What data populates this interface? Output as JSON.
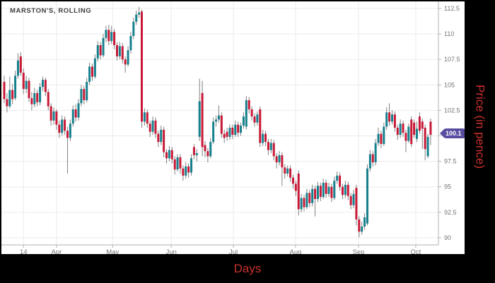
{
  "title": "MARSTON'S, ROLLING",
  "axis_titles": {
    "x": "Days",
    "y": "Price (in pence)"
  },
  "price_badge": {
    "value": "100.1"
  },
  "colors": {
    "up": "#17808d",
    "down": "#c81937",
    "wick": "#808080",
    "grid": "#ebebeb",
    "axis_line": "#b0b0b0",
    "tick_text": "#757575",
    "badge": "#584ca0",
    "axis_title_text": "#c9302c"
  },
  "chart_data": {
    "type": "candlestick",
    "title": "MARSTON'S, ROLLING",
    "xlabel": "Days",
    "ylabel": "Price (in pence)",
    "ylim": [
      88.9,
      113.2
    ],
    "grid": true,
    "y_ticks": [
      112.5,
      110,
      107.5,
      105,
      102.5,
      100,
      97.5,
      95,
      92.5,
      90
    ],
    "y_tick_labels": [
      "112.5",
      "110",
      "107.5",
      "105",
      "102.5",
      "",
      "97.5",
      "95",
      "92.5",
      "90"
    ],
    "x_ticks": [
      {
        "label": "14",
        "i": 7
      },
      {
        "label": "Apr",
        "i": 19
      },
      {
        "label": "May",
        "i": 39.4
      },
      {
        "label": "Jun",
        "i": 60.7
      },
      {
        "label": "Jul",
        "i": 83.3
      },
      {
        "label": "Aug",
        "i": 105.9
      },
      {
        "label": "Sep",
        "i": 128.8
      },
      {
        "label": "Oct",
        "i": 149.6
      }
    ],
    "last_price": 100.1,
    "candles_format": [
      "open",
      "high",
      "low",
      "close"
    ],
    "candles": [
      [
        105.3,
        105.9,
        103.2,
        103.6
      ],
      [
        103.6,
        104.2,
        102.3,
        102.9
      ],
      [
        102.9,
        105.8,
        102.7,
        104.5
      ],
      [
        104.5,
        105.1,
        103.1,
        103.6
      ],
      [
        103.7,
        106.4,
        103.5,
        105.9
      ],
      [
        105.9,
        108.1,
        105.6,
        107.4
      ],
      [
        107.8,
        108.2,
        105.9,
        106.2
      ],
      [
        106.2,
        106.6,
        104.1,
        104.6
      ],
      [
        104.6,
        105.9,
        104.2,
        105.4
      ],
      [
        105.4,
        105.7,
        103.3,
        103.7
      ],
      [
        103.7,
        104.3,
        102.5,
        103.1
      ],
      [
        103.1,
        104.7,
        102.8,
        104.2
      ],
      [
        104.2,
        104.5,
        102.9,
        103.3
      ],
      [
        103.3,
        105.2,
        103.0,
        104.8
      ],
      [
        104.8,
        105.8,
        104.4,
        105.5
      ],
      [
        105.5,
        105.7,
        103.9,
        104.3
      ],
      [
        104.3,
        104.6,
        102.5,
        102.9
      ],
      [
        102.9,
        103.2,
        101.0,
        101.5
      ],
      [
        101.5,
        102.8,
        101.1,
        102.4
      ],
      [
        102.4,
        102.6,
        100.6,
        101.1
      ],
      [
        101.1,
        101.5,
        99.8,
        100.3
      ],
      [
        100.3,
        102.0,
        100.0,
        101.6
      ],
      [
        101.6,
        101.9,
        100.1,
        100.5
      ],
      [
        100.5,
        100.9,
        96.3,
        99.8
      ],
      [
        99.8,
        101.6,
        99.5,
        101.2
      ],
      [
        101.2,
        103.0,
        100.9,
        102.6
      ],
      [
        102.6,
        103.1,
        101.4,
        101.8
      ],
      [
        101.8,
        103.6,
        101.5,
        103.2
      ],
      [
        103.2,
        105.0,
        102.9,
        104.6
      ],
      [
        104.6,
        104.9,
        103.1,
        103.5
      ],
      [
        103.5,
        105.7,
        103.3,
        105.3
      ],
      [
        105.3,
        107.2,
        105.0,
        106.8
      ],
      [
        106.8,
        107.1,
        105.4,
        105.8
      ],
      [
        105.8,
        108.0,
        105.6,
        107.6
      ],
      [
        107.6,
        109.3,
        107.3,
        108.9
      ],
      [
        108.9,
        109.2,
        107.5,
        107.9
      ],
      [
        107.9,
        110.0,
        107.7,
        109.6
      ],
      [
        109.6,
        110.8,
        109.2,
        110.4
      ],
      [
        110.4,
        110.9,
        108.9,
        109.3
      ],
      [
        109.3,
        110.8,
        109.0,
        110.2
      ],
      [
        110.2,
        110.5,
        108.5,
        108.9
      ],
      [
        108.9,
        109.2,
        107.4,
        107.8
      ],
      [
        107.8,
        109.2,
        107.5,
        108.8
      ],
      [
        108.8,
        109.1,
        107.1,
        107.5
      ],
      [
        107.5,
        107.8,
        106.2,
        107.0
      ],
      [
        107.0,
        108.8,
        106.8,
        108.4
      ],
      [
        108.4,
        110.2,
        108.1,
        109.8
      ],
      [
        109.8,
        111.6,
        109.5,
        111.2
      ],
      [
        111.2,
        112.3,
        110.9,
        111.9
      ],
      [
        111.9,
        112.65,
        111.6,
        112.1
      ],
      [
        112.2,
        112.4,
        100.8,
        101.4
      ],
      [
        101.4,
        102.7,
        101.0,
        102.3
      ],
      [
        102.3,
        102.6,
        100.8,
        101.2
      ],
      [
        101.2,
        101.5,
        99.9,
        100.4
      ],
      [
        100.4,
        101.9,
        100.1,
        101.5
      ],
      [
        101.5,
        101.8,
        99.8,
        100.2
      ],
      [
        100.2,
        100.5,
        98.9,
        99.4
      ],
      [
        99.4,
        101.0,
        99.1,
        100.6
      ],
      [
        100.6,
        100.9,
        97.9,
        98.4
      ],
      [
        98.4,
        98.7,
        97.3,
        97.8
      ],
      [
        97.8,
        99.0,
        97.5,
        98.6
      ],
      [
        98.6,
        98.9,
        97.3,
        97.7
      ],
      [
        97.7,
        98.0,
        96.2,
        96.7
      ],
      [
        96.7,
        98.2,
        96.5,
        97.9
      ],
      [
        97.9,
        98.2,
        96.3,
        96.8
      ],
      [
        96.8,
        97.1,
        95.6,
        96.1
      ],
      [
        96.1,
        97.4,
        95.8,
        97.0
      ],
      [
        97.0,
        97.3,
        95.9,
        96.4
      ],
      [
        96.4,
        98.2,
        96.1,
        97.8
      ],
      [
        98.9,
        99.2,
        97.7,
        98.1
      ],
      [
        98.1,
        98.7,
        97.5,
        98.3
      ],
      [
        99.9,
        105.6,
        99.5,
        103.4
      ],
      [
        104.2,
        105.4,
        98.0,
        98.9
      ],
      [
        99.1,
        99.5,
        97.9,
        98.5
      ],
      [
        98.5,
        98.8,
        97.4,
        98.0
      ],
      [
        98.0,
        99.8,
        97.8,
        99.4
      ],
      [
        99.4,
        101.8,
        99.2,
        101.4
      ],
      [
        101.4,
        102.0,
        100.9,
        101.6
      ],
      [
        101.6,
        103.0,
        101.3,
        102.0
      ],
      [
        102.0,
        102.3,
        99.8,
        100.2
      ],
      [
        100.2,
        100.6,
        99.3,
        99.8
      ],
      [
        100.4,
        100.8,
        99.5,
        99.9
      ],
      [
        99.9,
        101.1,
        99.6,
        100.8
      ],
      [
        100.8,
        101.1,
        99.7,
        100.1
      ],
      [
        100.1,
        101.5,
        99.9,
        101.1
      ],
      [
        101.1,
        101.4,
        99.9,
        100.3
      ],
      [
        100.3,
        101.3,
        100.0,
        101.0
      ],
      [
        101.0,
        102.3,
        100.7,
        101.9
      ],
      [
        100.9,
        103.9,
        100.6,
        103.5
      ],
      [
        103.5,
        103.8,
        102.2,
        102.6
      ],
      [
        102.6,
        102.9,
        101.5,
        101.9
      ],
      [
        101.9,
        102.2,
        100.9,
        101.3
      ],
      [
        101.3,
        102.4,
        101.0,
        102.1
      ],
      [
        102.6,
        102.9,
        98.9,
        99.3
      ],
      [
        99.3,
        100.6,
        99.0,
        100.2
      ],
      [
        100.2,
        100.5,
        99.0,
        99.4
      ],
      [
        99.4,
        99.7,
        98.1,
        98.6
      ],
      [
        98.6,
        99.7,
        98.3,
        99.3
      ],
      [
        99.3,
        99.6,
        97.6,
        98.0
      ],
      [
        98.0,
        98.3,
        96.8,
        97.4
      ],
      [
        97.4,
        98.5,
        97.1,
        98.1
      ],
      [
        98.1,
        98.4,
        95.1,
        96.9
      ],
      [
        96.9,
        97.2,
        95.8,
        96.3
      ],
      [
        96.3,
        97.1,
        96.0,
        96.8
      ],
      [
        96.8,
        97.1,
        95.5,
        95.9
      ],
      [
        95.9,
        96.2,
        94.8,
        95.3
      ],
      [
        95.3,
        95.6,
        94.1,
        94.6
      ],
      [
        96.3,
        96.6,
        92.2,
        92.8
      ],
      [
        92.8,
        94.3,
        92.5,
        93.9
      ],
      [
        93.9,
        94.2,
        92.6,
        93.0
      ],
      [
        93.0,
        94.8,
        92.8,
        94.4
      ],
      [
        94.4,
        94.7,
        93.0,
        93.4
      ],
      [
        93.4,
        95.2,
        93.1,
        94.8
      ],
      [
        94.8,
        95.1,
        92.1,
        93.8
      ],
      [
        93.8,
        95.5,
        93.5,
        95.1
      ],
      [
        95.1,
        95.4,
        93.6,
        94.0
      ],
      [
        94.0,
        95.8,
        93.8,
        95.4
      ],
      [
        95.4,
        95.7,
        93.9,
        94.3
      ],
      [
        94.3,
        95.4,
        94.0,
        95.0
      ],
      [
        95.0,
        95.3,
        93.5,
        93.9
      ],
      [
        93.9,
        96.0,
        93.7,
        95.6
      ],
      [
        95.6,
        96.5,
        95.3,
        96.1
      ],
      [
        96.1,
        96.4,
        94.6,
        95.0
      ],
      [
        95.0,
        95.3,
        93.8,
        94.2
      ],
      [
        94.2,
        95.6,
        93.9,
        95.2
      ],
      [
        95.2,
        95.5,
        93.7,
        94.1
      ],
      [
        94.1,
        94.4,
        92.8,
        93.2
      ],
      [
        93.2,
        94.7,
        92.9,
        94.3
      ],
      [
        94.9,
        95.2,
        91.2,
        91.8
      ],
      [
        91.8,
        92.1,
        90.05,
        90.6
      ],
      [
        90.6,
        91.6,
        90.3,
        91.1
      ],
      [
        91.1,
        92.4,
        90.8,
        92.0
      ],
      [
        91.4,
        97.2,
        91.2,
        96.8
      ],
      [
        96.8,
        98.6,
        96.5,
        98.2
      ],
      [
        98.2,
        98.5,
        97.0,
        97.4
      ],
      [
        97.4,
        99.7,
        97.1,
        99.3
      ],
      [
        99.3,
        100.8,
        99.0,
        100.2
      ],
      [
        100.2,
        100.5,
        98.8,
        99.2
      ],
      [
        99.2,
        101.3,
        99.0,
        100.9
      ],
      [
        100.9,
        102.8,
        100.6,
        102.3
      ],
      [
        102.3,
        103.2,
        101.0,
        101.4
      ],
      [
        101.4,
        102.5,
        101.1,
        102.1
      ],
      [
        102.1,
        102.4,
        100.4,
        100.8
      ],
      [
        100.8,
        101.1,
        99.6,
        100.1
      ],
      [
        100.1,
        101.6,
        99.8,
        101.2
      ],
      [
        101.2,
        101.5,
        99.9,
        100.3
      ],
      [
        100.3,
        100.6,
        98.4,
        99.5
      ],
      [
        99.5,
        101.2,
        99.3,
        100.9
      ],
      [
        101.6,
        101.9,
        98.9,
        99.2
      ],
      [
        101.3,
        101.6,
        99.8,
        100.1
      ],
      [
        99.7,
        101.4,
        99.4,
        100.7
      ],
      [
        101.9,
        102.3,
        100.2,
        100.5
      ],
      [
        101.4,
        101.7,
        98.7,
        100.7
      ],
      [
        100.8,
        101.1,
        97.6,
        98.7
      ],
      [
        98.0,
        100.2,
        97.8,
        99.9
      ],
      [
        101.4,
        101.7,
        99.1,
        100.1
      ]
    ]
  }
}
